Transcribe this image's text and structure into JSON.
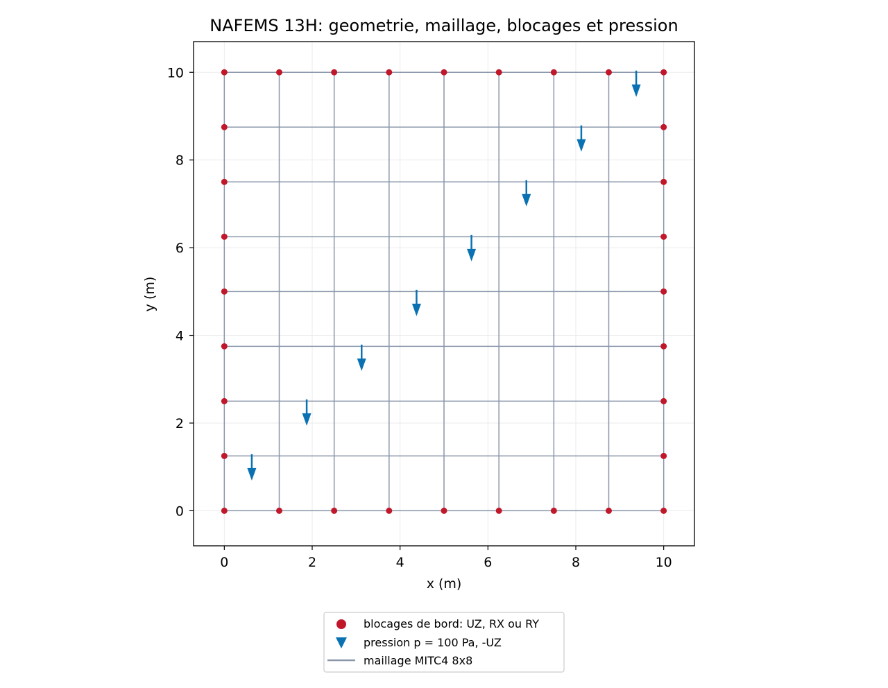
{
  "chart_data": {
    "type": "scatter",
    "title": "NAFEMS 13H: geometrie, maillage, blocages et pression",
    "xlabel": "x (m)",
    "ylabel": "y (m)",
    "xlim": [
      -0.7,
      10.7
    ],
    "ylim": [
      -0.8,
      10.7
    ],
    "xticks": [
      0,
      2,
      4,
      6,
      8,
      10
    ],
    "yticks": [
      0,
      2,
      4,
      6,
      8,
      10
    ],
    "grid": true,
    "legend_position": "bottom-center",
    "colors": {
      "mesh": "#8a96aa",
      "supports": "#c0182a",
      "pressure": "#0a72b2",
      "grid": "#ebebeb"
    },
    "series": [
      {
        "name": "blocages de bord: UZ, RX ou RY",
        "marker": "circle",
        "points": [
          [
            0,
            0
          ],
          [
            1.25,
            0
          ],
          [
            2.5,
            0
          ],
          [
            3.75,
            0
          ],
          [
            5,
            0
          ],
          [
            6.25,
            0
          ],
          [
            7.5,
            0
          ],
          [
            8.75,
            0
          ],
          [
            10,
            0
          ],
          [
            0,
            10
          ],
          [
            1.25,
            10
          ],
          [
            2.5,
            10
          ],
          [
            3.75,
            10
          ],
          [
            5,
            10
          ],
          [
            6.25,
            10
          ],
          [
            7.5,
            10
          ],
          [
            8.75,
            10
          ],
          [
            10,
            10
          ],
          [
            0,
            1.25
          ],
          [
            0,
            2.5
          ],
          [
            0,
            3.75
          ],
          [
            0,
            5
          ],
          [
            0,
            6.25
          ],
          [
            0,
            7.5
          ],
          [
            0,
            8.75
          ],
          [
            10,
            1.25
          ],
          [
            10,
            2.5
          ],
          [
            10,
            3.75
          ],
          [
            10,
            5
          ],
          [
            10,
            6.25
          ],
          [
            10,
            7.5
          ],
          [
            10,
            8.75
          ]
        ]
      },
      {
        "name": "pression p = 100 Pa, -UZ",
        "marker": "arrow-down",
        "points": [
          [
            0.625,
            0.625
          ],
          [
            1.875,
            1.875
          ],
          [
            3.125,
            3.125
          ],
          [
            4.375,
            4.375
          ],
          [
            5.625,
            5.625
          ],
          [
            6.875,
            6.875
          ],
          [
            8.125,
            8.125
          ],
          [
            9.375,
            9.375
          ]
        ]
      },
      {
        "name": "maillage MITC4 8x8",
        "marker": "line",
        "grid_lines_x": [
          0,
          1.25,
          2.5,
          3.75,
          5,
          6.25,
          7.5,
          8.75,
          10
        ],
        "grid_lines_y": [
          0,
          1.25,
          2.5,
          3.75,
          5,
          6.25,
          7.5,
          8.75,
          10
        ]
      }
    ]
  }
}
